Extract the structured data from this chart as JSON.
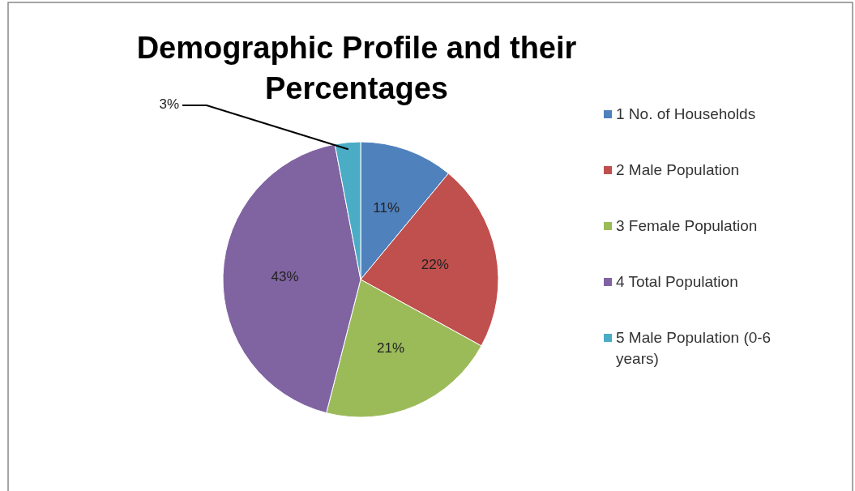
{
  "chart_data": {
    "type": "pie",
    "title": "Demographic Profile and their Percentages",
    "categories": [
      "1 No. of Households",
      "2 Male Population",
      "3 Female Population",
      "4 Total Population",
      "5 Male Population (0-6 years)"
    ],
    "values": [
      11,
      22,
      21,
      43,
      3
    ],
    "colors": [
      "#4f81bd",
      "#c0504d",
      "#9bbb59",
      "#8064a2",
      "#4bacc6"
    ],
    "value_labels": [
      "11%",
      "22%",
      "21%",
      "43%",
      "3%"
    ],
    "legend": "right"
  }
}
